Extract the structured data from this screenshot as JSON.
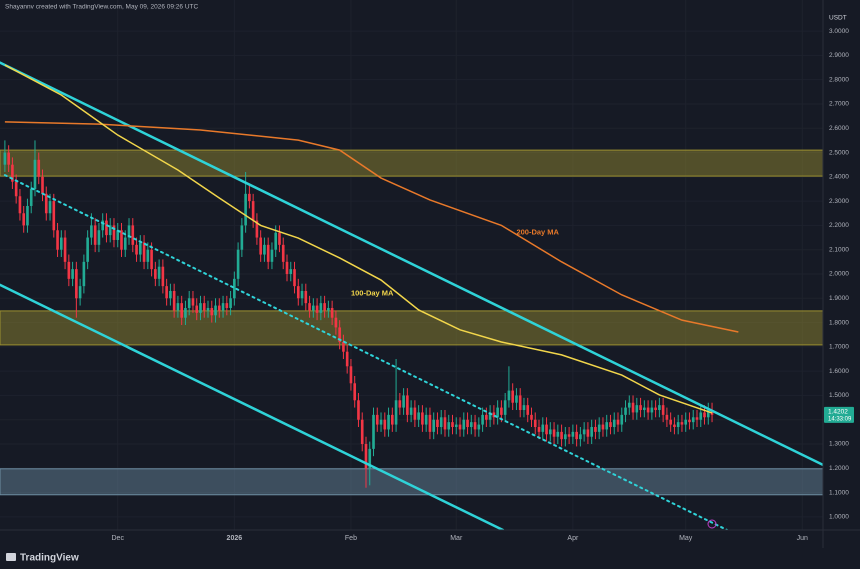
{
  "chart_data": {
    "type": "candlestick",
    "header": "Shayannv created with TradingView.com, May 09, 2026 09:26 UTC",
    "currency": "USDT",
    "brand": "TradingView",
    "countdown": "14:33:09",
    "up_color": "#22ab94",
    "down_color": "#f23645",
    "grid": true,
    "xlim": [
      -1.3,
      217.5
    ],
    "ylim": [
      0.946,
      3.128
    ],
    "xticks": [
      {
        "value": 30,
        "label": "Dec"
      },
      {
        "value": 61,
        "label": "2026"
      },
      {
        "value": 92,
        "label": "Feb"
      },
      {
        "value": 120,
        "label": "Mar"
      },
      {
        "value": 151,
        "label": "Apr"
      },
      {
        "value": 181,
        "label": "May"
      },
      {
        "value": 212,
        "label": "Jun"
      }
    ],
    "yticks": [
      {
        "value": 1,
        "label": "1.0000"
      },
      {
        "value": 1.1,
        "label": "1.1000"
      },
      {
        "value": 1.2,
        "label": "1.2000"
      },
      {
        "value": 1.3,
        "label": "1.3000"
      },
      {
        "value": 1.4,
        "label": "1.4000"
      },
      {
        "value": 1.5,
        "label": "1.5000"
      },
      {
        "value": 1.6,
        "label": "1.6000"
      },
      {
        "value": 1.7,
        "label": "1.7000"
      },
      {
        "value": 1.8,
        "label": "1.8000"
      },
      {
        "value": 1.9,
        "label": "1.9000"
      },
      {
        "value": 2,
        "label": "2.0000"
      },
      {
        "value": 2.1,
        "label": "2.1000"
      },
      {
        "value": 2.2,
        "label": "2.2000"
      },
      {
        "value": 2.3,
        "label": "2.3000"
      },
      {
        "value": 2.4,
        "label": "2.4000"
      },
      {
        "value": 2.5,
        "label": "2.5000"
      },
      {
        "value": 2.6,
        "label": "2.6000"
      },
      {
        "value": 2.7,
        "label": "2.7000"
      },
      {
        "value": 2.8,
        "label": "2.8000"
      },
      {
        "value": 2.9,
        "label": "2.9000"
      },
      {
        "value": 3,
        "label": "3.0000"
      }
    ],
    "zones": [
      {
        "low": 2.403,
        "high": 2.51,
        "color": "#9c9030"
      },
      {
        "low": 1.708,
        "high": 1.848,
        "color": "#9c9030"
      },
      {
        "low": 1.091,
        "high": 1.198,
        "color": "#6d8ea3"
      }
    ],
    "trendlines": [
      {
        "color": "#2fd3d8",
        "style": "solid",
        "x": [
          -1.3,
          217.5
        ],
        "values": [
          2.87,
          1.214
        ]
      },
      {
        "color": "#2fd3d8",
        "style": "solid",
        "x": [
          -1.3,
          132.4
        ],
        "values": [
          1.955,
          0.946
        ]
      },
      {
        "color": "#2fd3d8",
        "style": "dotted",
        "x": [
          0,
          192
        ],
        "values": [
          2.407,
          0.946
        ]
      }
    ],
    "series": [
      {
        "name": "200-Day MA",
        "color": "#e8792a",
        "x": [
          0,
          25,
          52,
          78,
          89,
          100,
          113,
          132,
          148,
          164,
          180,
          195
        ],
        "values": [
          2.626,
          2.617,
          2.593,
          2.551,
          2.51,
          2.395,
          2.305,
          2.2,
          2.05,
          1.914,
          1.81,
          1.761
        ],
        "label_at": [
          136,
          2.17
        ]
      },
      {
        "name": "100-Day MA",
        "color": "#f2d64b",
        "x": [
          0,
          15,
          30,
          46,
          57,
          68,
          78,
          89,
          100,
          110,
          121,
          132,
          148,
          164,
          174,
          188
        ],
        "values": [
          2.86,
          2.737,
          2.572,
          2.428,
          2.313,
          2.2,
          2.148,
          2.066,
          1.975,
          1.852,
          1.77,
          1.72,
          1.667,
          1.584,
          1.502,
          1.428
        ],
        "label_at": [
          92,
          1.92
        ]
      }
    ],
    "candles": [
      [
        2.45,
        2.55,
        2.42,
        2.5
      ],
      [
        2.5,
        2.53,
        2.42,
        2.45
      ],
      [
        2.45,
        2.48,
        2.35,
        2.38
      ],
      [
        2.38,
        2.41,
        2.29,
        2.32
      ],
      [
        2.32,
        2.35,
        2.22,
        2.25
      ],
      [
        2.25,
        2.28,
        2.17,
        2.2
      ],
      [
        2.2,
        2.31,
        2.17,
        2.28
      ],
      [
        2.28,
        2.38,
        2.25,
        2.35
      ],
      [
        2.35,
        2.55,
        2.32,
        2.47
      ],
      [
        2.47,
        2.5,
        2.37,
        2.4
      ],
      [
        2.4,
        2.43,
        2.3,
        2.33
      ],
      [
        2.33,
        2.36,
        2.22,
        2.25
      ],
      [
        2.25,
        2.33,
        2.22,
        2.3
      ],
      [
        2.3,
        2.33,
        2.15,
        2.18
      ],
      [
        2.18,
        2.21,
        2.07,
        2.1
      ],
      [
        2.1,
        2.18,
        2.07,
        2.15
      ],
      [
        2.15,
        2.18,
        2.02,
        2.05
      ],
      [
        2.05,
        2.08,
        1.95,
        1.98
      ],
      [
        1.98,
        2.05,
        1.95,
        2.02
      ],
      [
        2.02,
        2.05,
        1.82,
        1.9
      ],
      [
        1.9,
        1.98,
        1.87,
        1.95
      ],
      [
        1.95,
        2.08,
        1.92,
        2.05
      ],
      [
        2.05,
        2.18,
        2.02,
        2.15
      ],
      [
        2.15,
        2.25,
        2.12,
        2.2
      ],
      [
        2.2,
        2.23,
        2.09,
        2.12
      ],
      [
        2.12,
        2.21,
        2.09,
        2.18
      ],
      [
        2.18,
        2.25,
        2.15,
        2.22
      ],
      [
        2.22,
        2.25,
        2.13,
        2.16
      ],
      [
        2.16,
        2.23,
        2.13,
        2.2
      ],
      [
        2.2,
        2.23,
        2.11,
        2.14
      ],
      [
        2.14,
        2.21,
        2.11,
        2.18
      ],
      [
        2.18,
        2.21,
        2.07,
        2.1
      ],
      [
        2.1,
        2.18,
        2.07,
        2.15
      ],
      [
        2.15,
        2.23,
        2.12,
        2.2
      ],
      [
        2.2,
        2.23,
        2.09,
        2.12
      ],
      [
        2.12,
        2.15,
        2.05,
        2.08
      ],
      [
        2.08,
        2.16,
        2.05,
        2.13
      ],
      [
        2.13,
        2.16,
        2.02,
        2.05
      ],
      [
        2.05,
        2.13,
        2.02,
        2.1
      ],
      [
        2.1,
        2.13,
        1.99,
        2.02
      ],
      [
        2.02,
        2.05,
        1.95,
        1.98
      ],
      [
        1.98,
        2.06,
        1.95,
        2.03
      ],
      [
        2.03,
        2.06,
        1.92,
        1.95
      ],
      [
        1.95,
        1.98,
        1.87,
        1.9
      ],
      [
        1.9,
        1.96,
        1.87,
        1.93
      ],
      [
        1.93,
        1.96,
        1.82,
        1.85
      ],
      [
        1.85,
        1.91,
        1.82,
        1.88
      ],
      [
        1.88,
        1.91,
        1.79,
        1.82
      ],
      [
        1.82,
        1.89,
        1.79,
        1.86
      ],
      [
        1.86,
        1.93,
        1.83,
        1.9
      ],
      [
        1.9,
        1.93,
        1.84,
        1.87
      ],
      [
        1.87,
        1.9,
        1.81,
        1.84
      ],
      [
        1.84,
        1.91,
        1.81,
        1.88
      ],
      [
        1.88,
        1.91,
        1.82,
        1.85
      ],
      [
        1.85,
        1.89,
        1.82,
        1.86
      ],
      [
        1.86,
        1.89,
        1.8,
        1.83
      ],
      [
        1.83,
        1.9,
        1.8,
        1.87
      ],
      [
        1.87,
        1.9,
        1.82,
        1.85
      ],
      [
        1.85,
        1.91,
        1.82,
        1.88
      ],
      [
        1.88,
        1.91,
        1.83,
        1.86
      ],
      [
        1.86,
        1.93,
        1.83,
        1.9
      ],
      [
        1.9,
        2.01,
        1.87,
        1.98
      ],
      [
        1.98,
        2.13,
        1.95,
        2.1
      ],
      [
        2.1,
        2.23,
        2.07,
        2.2
      ],
      [
        2.2,
        2.42,
        2.17,
        2.33
      ],
      [
        2.33,
        2.37,
        2.27,
        2.3
      ],
      [
        2.3,
        2.33,
        2.19,
        2.22
      ],
      [
        2.22,
        2.25,
        2.12,
        2.15
      ],
      [
        2.15,
        2.18,
        2.05,
        2.08
      ],
      [
        2.08,
        2.15,
        2.05,
        2.12
      ],
      [
        2.12,
        2.15,
        2.02,
        2.05
      ],
      [
        2.05,
        2.13,
        2.02,
        2.1
      ],
      [
        2.1,
        2.2,
        2.07,
        2.17
      ],
      [
        2.17,
        2.2,
        2.09,
        2.12
      ],
      [
        2.12,
        2.15,
        2.02,
        2.05
      ],
      [
        2.05,
        2.08,
        1.97,
        2.0
      ],
      [
        2.0,
        2.05,
        1.97,
        2.02
      ],
      [
        2.02,
        2.05,
        1.92,
        1.95
      ],
      [
        1.95,
        1.98,
        1.87,
        1.9
      ],
      [
        1.9,
        1.96,
        1.87,
        1.93
      ],
      [
        1.93,
        1.96,
        1.85,
        1.88
      ],
      [
        1.88,
        1.91,
        1.82,
        1.85
      ],
      [
        1.85,
        1.9,
        1.82,
        1.87
      ],
      [
        1.87,
        1.9,
        1.81,
        1.84
      ],
      [
        1.84,
        1.91,
        1.81,
        1.88
      ],
      [
        1.88,
        1.91,
        1.82,
        1.85
      ],
      [
        1.85,
        1.89,
        1.82,
        1.86
      ],
      [
        1.86,
        1.89,
        1.79,
        1.82
      ],
      [
        1.82,
        1.85,
        1.75,
        1.78
      ],
      [
        1.78,
        1.81,
        1.69,
        1.72
      ],
      [
        1.72,
        1.75,
        1.65,
        1.68
      ],
      [
        1.68,
        1.71,
        1.59,
        1.62
      ],
      [
        1.62,
        1.65,
        1.52,
        1.55
      ],
      [
        1.55,
        1.58,
        1.45,
        1.48
      ],
      [
        1.48,
        1.51,
        1.37,
        1.4
      ],
      [
        1.4,
        1.43,
        1.27,
        1.3
      ],
      [
        1.3,
        1.33,
        1.12,
        1.2
      ],
      [
        1.2,
        1.31,
        1.13,
        1.28
      ],
      [
        1.28,
        1.45,
        1.25,
        1.42
      ],
      [
        1.42,
        1.45,
        1.35,
        1.38
      ],
      [
        1.38,
        1.43,
        1.35,
        1.4
      ],
      [
        1.4,
        1.43,
        1.33,
        1.36
      ],
      [
        1.36,
        1.45,
        1.33,
        1.42
      ],
      [
        1.42,
        1.45,
        1.35,
        1.38
      ],
      [
        1.38,
        1.65,
        1.35,
        1.48
      ],
      [
        1.48,
        1.51,
        1.42,
        1.45
      ],
      [
        1.45,
        1.53,
        1.42,
        1.5
      ],
      [
        1.5,
        1.53,
        1.39,
        1.42
      ],
      [
        1.42,
        1.48,
        1.39,
        1.45
      ],
      [
        1.45,
        1.48,
        1.37,
        1.4
      ],
      [
        1.4,
        1.46,
        1.37,
        1.43
      ],
      [
        1.43,
        1.46,
        1.35,
        1.38
      ],
      [
        1.38,
        1.45,
        1.35,
        1.42
      ],
      [
        1.42,
        1.45,
        1.32,
        1.35
      ],
      [
        1.35,
        1.43,
        1.32,
        1.4
      ],
      [
        1.4,
        1.43,
        1.34,
        1.37
      ],
      [
        1.37,
        1.44,
        1.34,
        1.41
      ],
      [
        1.41,
        1.44,
        1.33,
        1.36
      ],
      [
        1.36,
        1.42,
        1.33,
        1.39
      ],
      [
        1.39,
        1.42,
        1.34,
        1.37
      ],
      [
        1.37,
        1.41,
        1.34,
        1.38
      ],
      [
        1.38,
        1.41,
        1.33,
        1.36
      ],
      [
        1.36,
        1.43,
        1.33,
        1.4
      ],
      [
        1.4,
        1.43,
        1.34,
        1.37
      ],
      [
        1.37,
        1.42,
        1.34,
        1.39
      ],
      [
        1.39,
        1.42,
        1.33,
        1.36
      ],
      [
        1.36,
        1.41,
        1.33,
        1.38
      ],
      [
        1.38,
        1.45,
        1.35,
        1.42
      ],
      [
        1.42,
        1.45,
        1.37,
        1.4
      ],
      [
        1.4,
        1.46,
        1.37,
        1.43
      ],
      [
        1.43,
        1.46,
        1.38,
        1.41
      ],
      [
        1.41,
        1.48,
        1.38,
        1.45
      ],
      [
        1.45,
        1.48,
        1.39,
        1.42
      ],
      [
        1.42,
        1.51,
        1.39,
        1.48
      ],
      [
        1.48,
        1.62,
        1.45,
        1.52
      ],
      [
        1.52,
        1.55,
        1.44,
        1.47
      ],
      [
        1.47,
        1.53,
        1.44,
        1.5
      ],
      [
        1.5,
        1.53,
        1.41,
        1.44
      ],
      [
        1.44,
        1.49,
        1.41,
        1.46
      ],
      [
        1.46,
        1.49,
        1.39,
        1.42
      ],
      [
        1.42,
        1.45,
        1.37,
        1.4
      ],
      [
        1.4,
        1.43,
        1.34,
        1.37
      ],
      [
        1.37,
        1.4,
        1.32,
        1.35
      ],
      [
        1.35,
        1.41,
        1.32,
        1.38
      ],
      [
        1.38,
        1.41,
        1.31,
        1.34
      ],
      [
        1.34,
        1.39,
        1.31,
        1.36
      ],
      [
        1.36,
        1.39,
        1.3,
        1.33
      ],
      [
        1.33,
        1.38,
        1.3,
        1.35
      ],
      [
        1.35,
        1.38,
        1.29,
        1.32
      ],
      [
        1.32,
        1.37,
        1.29,
        1.34
      ],
      [
        1.34,
        1.37,
        1.3,
        1.33
      ],
      [
        1.33,
        1.38,
        1.3,
        1.35
      ],
      [
        1.35,
        1.38,
        1.29,
        1.32
      ],
      [
        1.32,
        1.37,
        1.29,
        1.34
      ],
      [
        1.34,
        1.39,
        1.31,
        1.36
      ],
      [
        1.36,
        1.39,
        1.3,
        1.33
      ],
      [
        1.33,
        1.4,
        1.3,
        1.37
      ],
      [
        1.37,
        1.4,
        1.32,
        1.35
      ],
      [
        1.35,
        1.41,
        1.32,
        1.38
      ],
      [
        1.38,
        1.41,
        1.33,
        1.36
      ],
      [
        1.36,
        1.42,
        1.33,
        1.39
      ],
      [
        1.39,
        1.42,
        1.34,
        1.37
      ],
      [
        1.37,
        1.43,
        1.34,
        1.4
      ],
      [
        1.4,
        1.43,
        1.35,
        1.38
      ],
      [
        1.38,
        1.45,
        1.35,
        1.42
      ],
      [
        1.42,
        1.48,
        1.39,
        1.45
      ],
      [
        1.45,
        1.5,
        1.42,
        1.47
      ],
      [
        1.47,
        1.5,
        1.4,
        1.43
      ],
      [
        1.43,
        1.49,
        1.4,
        1.46
      ],
      [
        1.46,
        1.49,
        1.41,
        1.44
      ],
      [
        1.44,
        1.48,
        1.41,
        1.45
      ],
      [
        1.45,
        1.48,
        1.4,
        1.43
      ],
      [
        1.43,
        1.48,
        1.4,
        1.45
      ],
      [
        1.45,
        1.48,
        1.41,
        1.44
      ],
      [
        1.44,
        1.49,
        1.41,
        1.46
      ],
      [
        1.46,
        1.49,
        1.39,
        1.42
      ],
      [
        1.42,
        1.45,
        1.37,
        1.4
      ],
      [
        1.4,
        1.43,
        1.35,
        1.38
      ],
      [
        1.38,
        1.41,
        1.34,
        1.37
      ],
      [
        1.37,
        1.42,
        1.34,
        1.39
      ],
      [
        1.39,
        1.42,
        1.35,
        1.38
      ],
      [
        1.38,
        1.43,
        1.35,
        1.4
      ],
      [
        1.4,
        1.43,
        1.36,
        1.39
      ],
      [
        1.39,
        1.44,
        1.36,
        1.41
      ],
      [
        1.41,
        1.44,
        1.37,
        1.4
      ],
      [
        1.4,
        1.46,
        1.37,
        1.43
      ],
      [
        1.43,
        1.46,
        1.38,
        1.41
      ],
      [
        1.41,
        1.47,
        1.38,
        1.44
      ],
      [
        1.44,
        1.47,
        1.39,
        1.4202
      ]
    ]
  }
}
